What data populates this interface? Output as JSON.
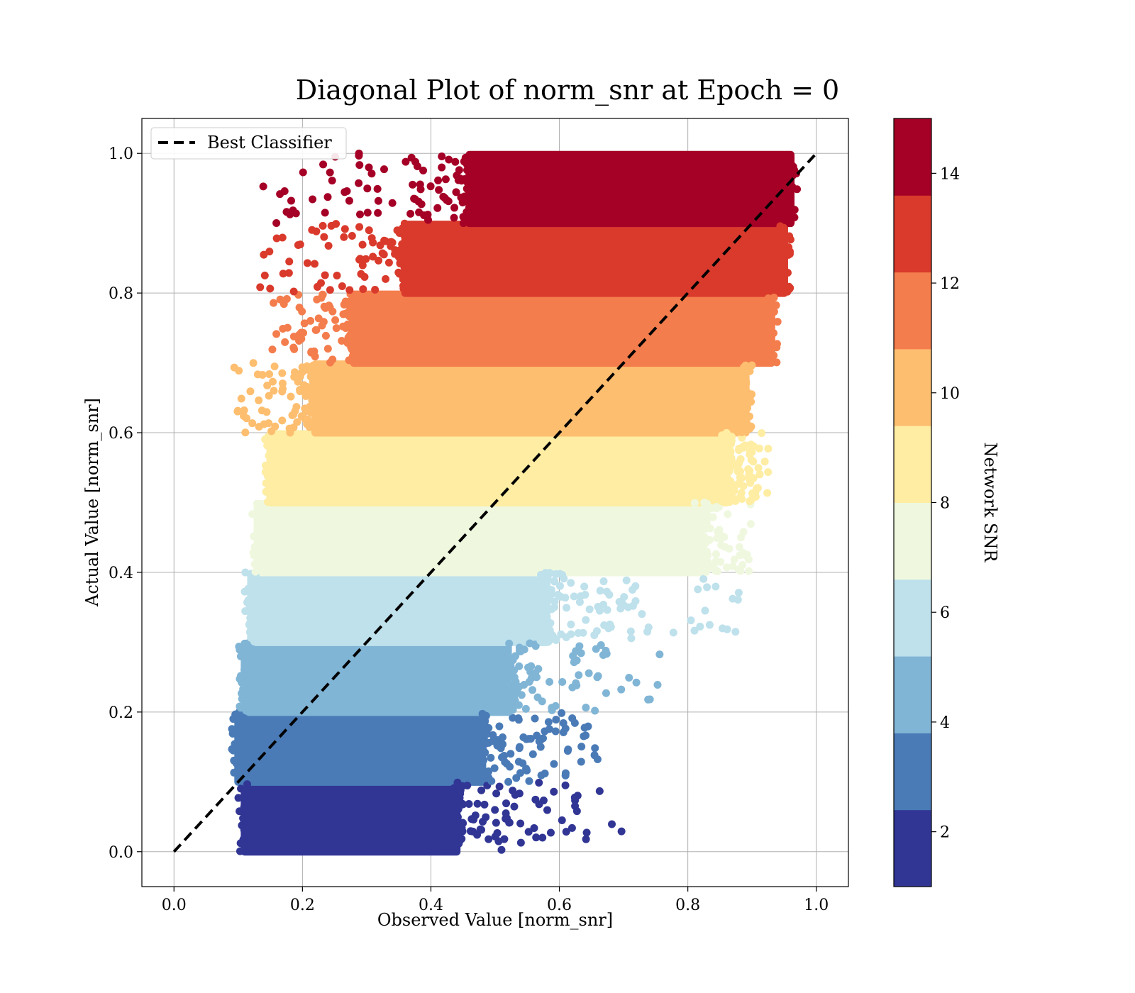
{
  "chart_data": {
    "type": "scatter",
    "title": "Diagonal Plot of norm_snr at Epoch = 0",
    "xlabel": "Observed Value [norm_snr]",
    "ylabel": "Actual Value [norm_snr]",
    "xlim": [
      -0.05,
      1.05
    ],
    "ylim": [
      -0.05,
      1.05
    ],
    "x_ticks": [
      0.0,
      0.2,
      0.4,
      0.6,
      0.8,
      1.0
    ],
    "x_tick_labels": [
      "0.0",
      "0.2",
      "0.4",
      "0.6",
      "0.8",
      "1.0"
    ],
    "y_ticks": [
      0.0,
      0.2,
      0.4,
      0.6,
      0.8,
      1.0
    ],
    "y_tick_labels": [
      "0.0",
      "0.2",
      "0.4",
      "0.6",
      "0.8",
      "1.0"
    ],
    "grid": true,
    "legend": {
      "position": "top-left",
      "entries": [
        "Best Classifier"
      ]
    },
    "reference_line": {
      "name": "Best Classifier",
      "x": [
        0.0,
        1.0
      ],
      "y": [
        0.0,
        1.0
      ],
      "style": "dashed",
      "color": "#000000"
    },
    "colorbar": {
      "label": "Network SNR",
      "range": [
        1,
        15
      ],
      "ticks": [
        2,
        4,
        6,
        8,
        10,
        12,
        14
      ],
      "tick_labels": [
        "2",
        "4",
        "6",
        "8",
        "10",
        "12",
        "14"
      ],
      "colors": [
        "#313695",
        "#4a7bb7",
        "#80b5d6",
        "#bee1ec",
        "#eff8df",
        "#feeda2",
        "#fdbe70",
        "#f47d4d",
        "#d93a2c",
        "#a50026"
      ]
    },
    "bands": [
      {
        "y_range": [
          0.0,
          0.1
        ],
        "x_core": [
          0.11,
          0.44
        ],
        "x_tail_max": 0.7,
        "color": "#313695"
      },
      {
        "y_range": [
          0.1,
          0.2
        ],
        "x_core": [
          0.1,
          0.48
        ],
        "x_tail_max": 0.66,
        "color": "#4a7bb7"
      },
      {
        "y_range": [
          0.2,
          0.3
        ],
        "x_core": [
          0.11,
          0.52
        ],
        "x_tail_max": 0.76,
        "color": "#80b5d6"
      },
      {
        "y_range": [
          0.3,
          0.4
        ],
        "x_core": [
          0.12,
          0.58
        ],
        "x_tail_max": 0.88,
        "color": "#bee1ec"
      },
      {
        "y_range": [
          0.4,
          0.5
        ],
        "x_core": [
          0.13,
          0.82
        ],
        "x_tail_max": 0.9,
        "color": "#eff8df"
      },
      {
        "y_range": [
          0.5,
          0.6
        ],
        "x_core": [
          0.15,
          0.86
        ],
        "x_tail_max": 0.93,
        "color": "#feeda2"
      },
      {
        "y_range": [
          0.6,
          0.7
        ],
        "x_core": [
          0.22,
          0.89
        ],
        "x_tail_min": 0.09,
        "color": "#fdbe70"
      },
      {
        "y_range": [
          0.7,
          0.8
        ],
        "x_core": [
          0.28,
          0.93
        ],
        "x_tail_min": 0.15,
        "color": "#f47d4d"
      },
      {
        "y_range": [
          0.8,
          0.9
        ],
        "x_core": [
          0.36,
          0.95
        ],
        "x_tail_min": 0.13,
        "color": "#d93a2c"
      },
      {
        "y_range": [
          0.9,
          1.0
        ],
        "x_core": [
          0.46,
          0.96
        ],
        "x_tail_min": 0.13,
        "color": "#a50026"
      }
    ]
  }
}
